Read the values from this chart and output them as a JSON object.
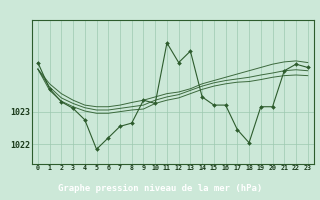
{
  "title": "Graphe pression niveau de la mer (hPa)",
  "bg_color": "#cce8d8",
  "plot_bg_color": "#cce8d8",
  "bottom_bar_color": "#2d6e2d",
  "line_color": "#2d5c2d",
  "marker_color": "#2d5c2d",
  "grid_color": "#9dc9b0",
  "label_bg_color": "#336633",
  "xlabel_color": "#ffffff",
  "tick_color": "#1a3a1a",
  "ytick_color": "#1a3a1a",
  "x_labels": [
    "0",
    "1",
    "2",
    "3",
    "4",
    "5",
    "6",
    "7",
    "8",
    "9",
    "10",
    "11",
    "12",
    "13",
    "14",
    "15",
    "16",
    "17",
    "18",
    "19",
    "20",
    "21",
    "22",
    "23"
  ],
  "yticks": [
    1022,
    1023
  ],
  "ylim": [
    1021.4,
    1025.8
  ],
  "xlim": [
    -0.5,
    23.5
  ],
  "smooth_series": [
    [
      1024.3,
      1023.85,
      1023.55,
      1023.35,
      1023.2,
      1023.15,
      1023.15,
      1023.2,
      1023.28,
      1023.35,
      1023.45,
      1023.55,
      1023.6,
      1023.7,
      1023.85,
      1023.95,
      1024.05,
      1024.15,
      1024.25,
      1024.35,
      1024.45,
      1024.52,
      1024.55,
      1024.5
    ],
    [
      1024.3,
      1023.75,
      1023.42,
      1023.25,
      1023.12,
      1023.05,
      1023.05,
      1023.1,
      1023.15,
      1023.2,
      1023.35,
      1023.45,
      1023.52,
      1023.65,
      1023.78,
      1023.88,
      1023.95,
      1024.0,
      1024.05,
      1024.12,
      1024.18,
      1024.25,
      1024.28,
      1024.25
    ],
    [
      1024.3,
      1023.65,
      1023.32,
      1023.15,
      1023.02,
      1022.95,
      1022.95,
      1023.0,
      1023.05,
      1023.08,
      1023.25,
      1023.35,
      1023.42,
      1023.55,
      1023.68,
      1023.78,
      1023.85,
      1023.9,
      1023.92,
      1023.98,
      1024.05,
      1024.1,
      1024.12,
      1024.1
    ]
  ],
  "main_series_x": [
    0,
    1,
    2,
    3,
    4,
    5,
    6,
    7,
    8,
    9,
    10,
    11,
    12,
    13,
    14,
    15,
    16,
    17,
    18,
    19,
    20,
    21,
    22,
    23
  ],
  "main_series_y": [
    1024.5,
    1023.7,
    1023.3,
    1023.1,
    1022.75,
    1021.85,
    1022.2,
    1022.55,
    1022.65,
    1023.35,
    1023.25,
    1025.1,
    1024.5,
    1024.85,
    1023.45,
    1023.2,
    1023.2,
    1022.45,
    1022.05,
    1023.15,
    1023.15,
    1024.25,
    1024.45,
    1024.35
  ]
}
